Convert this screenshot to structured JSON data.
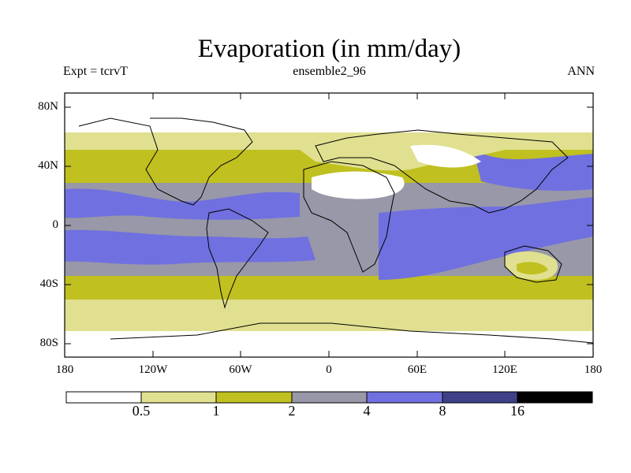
{
  "title": "Evaporation (in mm/day)",
  "subtitle_left": "Expt = tcrvT",
  "subtitle_center": "ensemble2_96",
  "subtitle_right": "ANN",
  "lat_ticks": [
    "80N",
    "40N",
    "0",
    "40S",
    "80S"
  ],
  "lon_ticks": [
    "180",
    "120W",
    "60W",
    "0",
    "60E",
    "120E",
    "180"
  ],
  "colorbar": {
    "labels": [
      "0.5",
      "1",
      "2",
      "4",
      "8",
      "16"
    ],
    "colors": [
      "#ffffff",
      "#e0e090",
      "#c0c020",
      "#9898a8",
      "#7070e0",
      "#404088",
      "#000000"
    ]
  },
  "chart_data": {
    "type": "heatmap",
    "title": "Evaporation (in mm/day)",
    "levels": [
      0.5,
      1,
      2,
      4,
      8,
      16
    ],
    "lat_range": [
      -90,
      90
    ],
    "lon_range": [
      -180,
      180
    ],
    "zonal_bands": [
      {
        "lat": [
          70,
          90
        ],
        "level": "<0.5"
      },
      {
        "lat": [
          50,
          70
        ],
        "level": "0.5-1"
      },
      {
        "lat": [
          35,
          50
        ],
        "level": "1-2"
      },
      {
        "lat": [
          -15,
          35
        ],
        "level": "2-4"
      },
      {
        "lat": [
          -35,
          -15
        ],
        "level": "4-8",
        "region": "Indian Ocean / Pacific"
      },
      {
        "lat": [
          -50,
          -35
        ],
        "level": "1-2"
      },
      {
        "lat": [
          -65,
          -50
        ],
        "level": "0.5-1"
      },
      {
        "lat": [
          -90,
          -65
        ],
        "level": "<0.5"
      }
    ]
  }
}
